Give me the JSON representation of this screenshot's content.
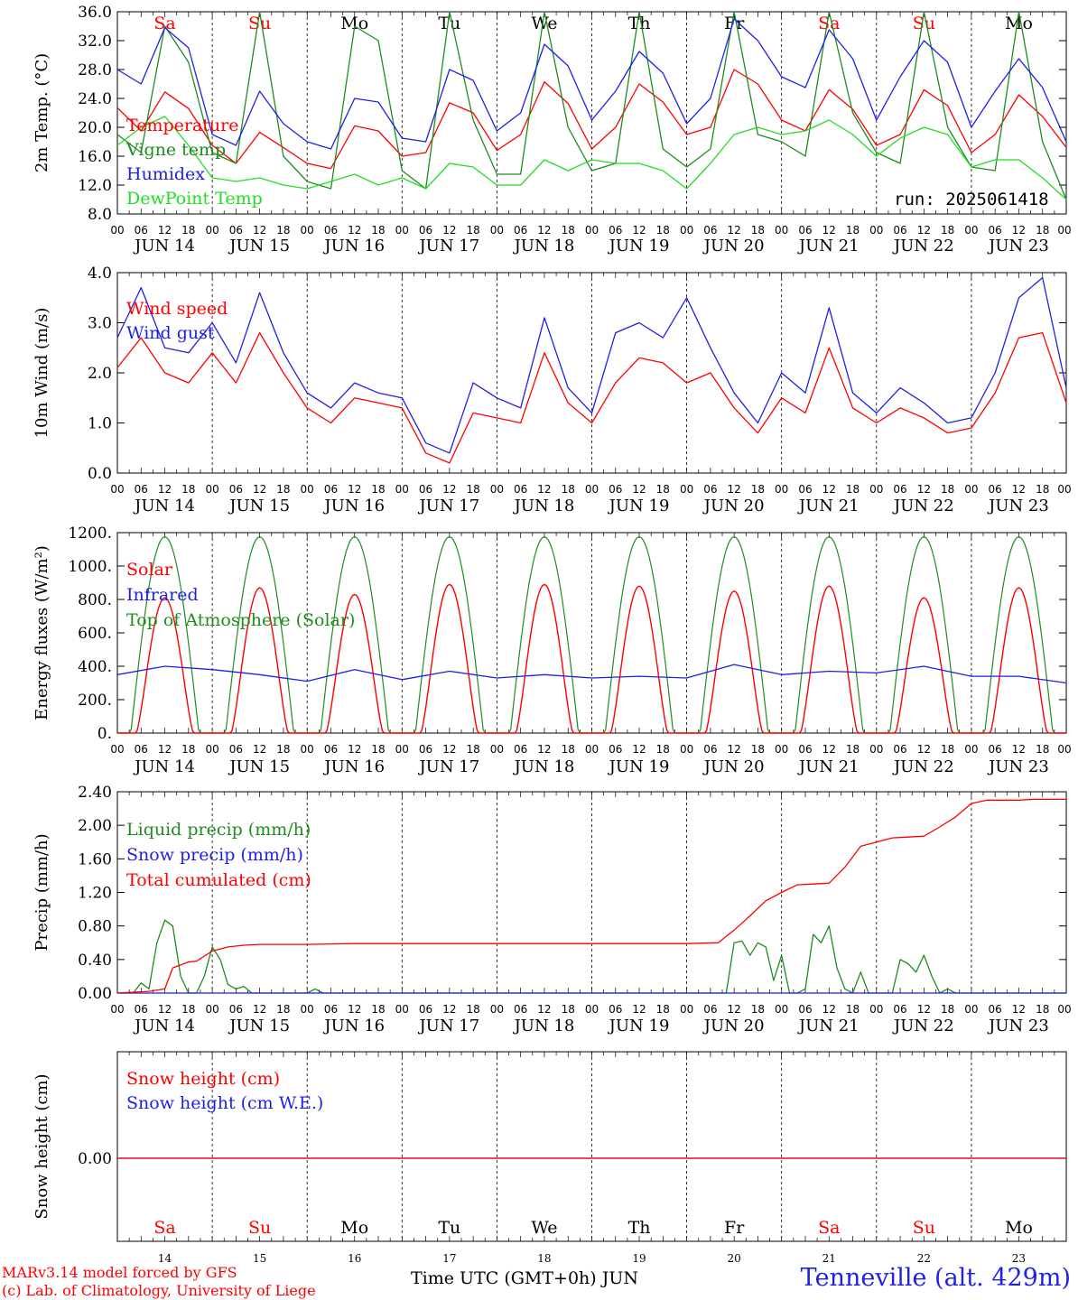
{
  "run_label": "run: 2025061418",
  "footer": {
    "model": "MARv3.14 model forced by GFS",
    "lab": "(c) Lab. of Climatology, University of Liege",
    "time_axis": "Time UTC (GMT+0h) JUN",
    "station": "Tenneville (alt. 429m)"
  },
  "days": {
    "weekday_labels": [
      "Sa",
      "Su",
      "Mo",
      "Tu",
      "We",
      "Th",
      "Fr",
      "Sa",
      "Su",
      "Mo"
    ],
    "weekend_color": "#ff0000",
    "date_labels": [
      "JUN 14",
      "JUN 15",
      "JUN 16",
      "JUN 17",
      "JUN 18",
      "JUN 19",
      "JUN 20",
      "JUN 21",
      "JUN 22",
      "JUN 23"
    ],
    "day_numbers": [
      "14",
      "15",
      "16",
      "17",
      "18",
      "19",
      "20",
      "21",
      "22",
      "23"
    ],
    "hour_ticks": [
      "00",
      "06",
      "12",
      "18"
    ],
    "final_tick": "00"
  },
  "colors": {
    "red": "#ff0000",
    "blue": "#1f1fe6",
    "green": "#1e8c1e",
    "lightgreen": "#22dd22"
  },
  "chart_data": [
    {
      "type": "line",
      "ylabel": "2m Temp. (°C)",
      "ylim": [
        8,
        36
      ],
      "yticks": [
        "8.0",
        "12.0",
        "16.0",
        "20.0",
        "24.0",
        "28.0",
        "32.0",
        "36.0"
      ],
      "x_unit": "hours since JUN 14 00 UTC",
      "series": [
        {
          "name": "Temperature",
          "color": "#ff0000",
          "x": [
            0,
            6,
            12,
            18,
            24,
            30,
            36,
            42,
            48,
            54,
            60,
            66,
            72,
            78,
            84,
            90,
            96,
            102,
            108,
            114,
            120,
            126,
            132,
            138,
            144,
            150,
            156,
            162,
            168,
            174,
            180,
            186,
            192,
            198,
            204,
            210,
            216,
            222,
            228,
            234,
            240
          ],
          "y": [
            22.7,
            19.5,
            24.9,
            22.6,
            17.5,
            15.0,
            19.3,
            17.2,
            15.0,
            14.3,
            20.2,
            19.5,
            16.0,
            16.5,
            23.4,
            22.0,
            16.8,
            19.0,
            26.3,
            23.3,
            17.0,
            20.0,
            26.0,
            23.5,
            19.0,
            20.0,
            28.0,
            26.0,
            21.0,
            19.5,
            25.2,
            22.5,
            17.5,
            19.0,
            25.2,
            23.0,
            16.5,
            19.0,
            24.5,
            21.5,
            17.2
          ]
        },
        {
          "name": "Vigne temp",
          "color": "#1e8c1e",
          "x": [
            0,
            6,
            12,
            18,
            24,
            30,
            36,
            42,
            48,
            54,
            60,
            66,
            72,
            78,
            84,
            90,
            96,
            102,
            108,
            114,
            120,
            126,
            132,
            138,
            144,
            150,
            156,
            162,
            168,
            174,
            180,
            186,
            192,
            198,
            204,
            210,
            216,
            222,
            228,
            234,
            240
          ],
          "y": [
            19.0,
            16.5,
            34.0,
            29.0,
            16.5,
            15.0,
            36.0,
            16.0,
            12.5,
            11.5,
            34.0,
            32.0,
            14.0,
            11.5,
            36.0,
            21.0,
            13.5,
            13.5,
            36.0,
            20.0,
            14.0,
            15.0,
            36.0,
            17.0,
            14.5,
            17.0,
            36.0,
            19.0,
            18.0,
            16.0,
            36.0,
            22.0,
            16.5,
            15.0,
            36.0,
            20.0,
            14.5,
            14.0,
            36.0,
            18.0,
            10.0
          ]
        },
        {
          "name": "Humidex",
          "color": "#1f1fe6",
          "x": [
            0,
            6,
            12,
            18,
            24,
            30,
            36,
            42,
            48,
            54,
            60,
            66,
            72,
            78,
            84,
            90,
            96,
            102,
            108,
            114,
            120,
            126,
            132,
            138,
            144,
            150,
            156,
            162,
            168,
            174,
            180,
            186,
            192,
            198,
            204,
            210,
            216,
            222,
            228,
            234,
            240
          ],
          "y": [
            28.0,
            26.0,
            33.8,
            31.0,
            19.0,
            17.5,
            25.0,
            20.5,
            18.0,
            17.0,
            24.0,
            23.5,
            18.5,
            18.0,
            28.0,
            26.5,
            19.5,
            22.0,
            31.5,
            28.5,
            21.0,
            25.0,
            30.5,
            27.5,
            20.5,
            24.0,
            35.0,
            32.0,
            27.0,
            25.5,
            33.5,
            29.5,
            21.0,
            27.0,
            32.0,
            29.0,
            20.0,
            25.0,
            29.5,
            25.5,
            18.0
          ]
        },
        {
          "name": "DewPoint Temp",
          "color": "#22dd22",
          "x": [
            0,
            6,
            12,
            18,
            24,
            30,
            36,
            42,
            48,
            54,
            60,
            66,
            72,
            78,
            84,
            90,
            96,
            102,
            108,
            114,
            120,
            126,
            132,
            138,
            144,
            150,
            156,
            162,
            168,
            174,
            180,
            186,
            192,
            198,
            204,
            210,
            216,
            222,
            228,
            234,
            240
          ],
          "y": [
            17.5,
            20.0,
            21.5,
            17.5,
            13.0,
            12.5,
            13.0,
            12.0,
            11.5,
            12.5,
            13.5,
            12.0,
            13.0,
            11.5,
            15.0,
            14.5,
            12.0,
            12.0,
            15.5,
            14.0,
            15.5,
            15.0,
            15.0,
            14.0,
            11.5,
            15.0,
            19.0,
            20.0,
            19.0,
            19.5,
            21.0,
            19.0,
            16.0,
            18.5,
            20.0,
            19.0,
            14.5,
            15.5,
            15.5,
            13.0,
            10.0
          ]
        }
      ]
    },
    {
      "type": "line",
      "ylabel": "10m Wind (m/s)",
      "ylim": [
        0,
        4
      ],
      "yticks": [
        "0.0",
        "1.0",
        "2.0",
        "3.0",
        "4.0"
      ],
      "x_unit": "hours since JUN 14 00 UTC",
      "series": [
        {
          "name": "Wind speed",
          "color": "#ff0000",
          "x": [
            0,
            6,
            12,
            18,
            24,
            30,
            36,
            42,
            48,
            54,
            60,
            66,
            72,
            78,
            84,
            90,
            96,
            102,
            108,
            114,
            120,
            126,
            132,
            138,
            144,
            150,
            156,
            162,
            168,
            174,
            180,
            186,
            192,
            198,
            204,
            210,
            216,
            222,
            228,
            234,
            240
          ],
          "y": [
            2.1,
            2.7,
            2.0,
            1.8,
            2.4,
            1.8,
            2.8,
            2.0,
            1.3,
            1.0,
            1.5,
            1.4,
            1.3,
            0.4,
            0.2,
            1.2,
            1.1,
            1.0,
            2.4,
            1.4,
            1.0,
            1.8,
            2.3,
            2.2,
            1.8,
            2.0,
            1.3,
            0.8,
            1.5,
            1.2,
            2.5,
            1.3,
            1.0,
            1.3,
            1.1,
            0.8,
            0.9,
            1.6,
            2.7,
            2.8,
            1.4
          ]
        },
        {
          "name": "Wind gust",
          "color": "#1f1fe6",
          "x": [
            0,
            6,
            12,
            18,
            24,
            30,
            36,
            42,
            48,
            54,
            60,
            66,
            72,
            78,
            84,
            90,
            96,
            102,
            108,
            114,
            120,
            126,
            132,
            138,
            144,
            150,
            156,
            162,
            168,
            174,
            180,
            186,
            192,
            198,
            204,
            210,
            216,
            222,
            228,
            234,
            240
          ],
          "y": [
            2.7,
            3.7,
            2.5,
            2.4,
            3.0,
            2.2,
            3.6,
            2.4,
            1.6,
            1.3,
            1.8,
            1.6,
            1.5,
            0.6,
            0.4,
            1.8,
            1.5,
            1.3,
            3.1,
            1.7,
            1.2,
            2.8,
            3.0,
            2.7,
            3.5,
            2.5,
            1.6,
            1.0,
            2.0,
            1.6,
            3.3,
            1.6,
            1.2,
            1.7,
            1.4,
            1.0,
            1.1,
            2.0,
            3.5,
            3.9,
            1.7
          ]
        }
      ]
    },
    {
      "type": "line",
      "ylabel": "Energy fluxes (W/m²)",
      "ylim": [
        0,
        1200
      ],
      "yticks": [
        "0.",
        "200.",
        "400.",
        "600.",
        "800.",
        "1000.",
        "1200."
      ],
      "x_unit": "hours since JUN 14 00 UTC",
      "series": [
        {
          "name": "Solar",
          "color": "#ff0000",
          "day_peaks": [
            810,
            870,
            830,
            890,
            890,
            880,
            850,
            880,
            810,
            870
          ]
        },
        {
          "name": "Infrared",
          "color": "#1f1fe6",
          "x": [
            0,
            12,
            24,
            36,
            48,
            60,
            72,
            84,
            96,
            108,
            120,
            132,
            144,
            156,
            168,
            180,
            192,
            204,
            216,
            228,
            240
          ],
          "y": [
            350,
            400,
            380,
            350,
            310,
            380,
            320,
            370,
            330,
            350,
            330,
            340,
            330,
            410,
            350,
            370,
            360,
            400,
            340,
            340,
            300
          ]
        },
        {
          "name": "Top of Atmosphere (Solar)",
          "color": "#1e8c1e",
          "day_peak": 1175
        }
      ]
    },
    {
      "type": "line",
      "ylabel": "Precip (mm/h)",
      "ylim": [
        0,
        2.4
      ],
      "yticks": [
        "0.00",
        "0.40",
        "0.80",
        "1.20",
        "1.60",
        "2.00",
        "2.40"
      ],
      "x_unit": "hours since JUN 14 00 UTC",
      "series": [
        {
          "name": "Liquid precip (mm/h)",
          "color": "#1e8c1e",
          "x": [
            0,
            4,
            6,
            8,
            10,
            12,
            14,
            16,
            18,
            20,
            22,
            24,
            26,
            28,
            30,
            32,
            34,
            48,
            50,
            52,
            154,
            156,
            158,
            160,
            162,
            164,
            166,
            168,
            170,
            172,
            174,
            176,
            178,
            180,
            182,
            184,
            186,
            188,
            190,
            192,
            194,
            196,
            198,
            200,
            202,
            204,
            206,
            208,
            210,
            212,
            214,
            240
          ],
          "y": [
            0,
            0,
            0.12,
            0.05,
            0.6,
            0.87,
            0.8,
            0.2,
            0,
            0,
            0.2,
            0.55,
            0.4,
            0.1,
            0.05,
            0.08,
            0,
            0,
            0.05,
            0,
            0,
            0.6,
            0.62,
            0.45,
            0.6,
            0.55,
            0.15,
            0.45,
            0,
            0,
            0.05,
            0.7,
            0.6,
            0.8,
            0.3,
            0.05,
            0,
            0.25,
            0,
            0,
            0,
            0,
            0.4,
            0.35,
            0.25,
            0.45,
            0.2,
            0,
            0.05,
            0,
            0,
            0
          ]
        },
        {
          "name": "Snow precip (mm/h)",
          "color": "#1f1fe6",
          "x": [
            0,
            240
          ],
          "y": [
            0,
            0
          ]
        },
        {
          "name": "Total cumulated (cm)",
          "color": "#ff0000",
          "x": [
            0,
            8,
            12,
            14,
            18,
            20,
            24,
            28,
            32,
            36,
            40,
            48,
            60,
            72,
            96,
            120,
            144,
            152,
            156,
            160,
            164,
            168,
            172,
            176,
            180,
            184,
            188,
            192,
            196,
            200,
            204,
            208,
            212,
            216,
            220,
            224,
            228,
            232,
            236,
            240
          ],
          "y": [
            0,
            0.02,
            0.05,
            0.3,
            0.37,
            0.38,
            0.5,
            0.55,
            0.57,
            0.58,
            0.58,
            0.58,
            0.59,
            0.59,
            0.59,
            0.59,
            0.59,
            0.6,
            0.75,
            0.92,
            1.1,
            1.2,
            1.29,
            1.3,
            1.31,
            1.5,
            1.75,
            1.8,
            1.85,
            1.86,
            1.87,
            1.98,
            2.1,
            2.26,
            2.3,
            2.3,
            2.3,
            2.31,
            2.31,
            2.31
          ]
        }
      ]
    },
    {
      "type": "line",
      "ylabel": "Snow height (cm)",
      "yticks": [
        "0.00"
      ],
      "x_unit": "hours since JUN 14 00 UTC",
      "series": [
        {
          "name": "Snow height (cm)",
          "color": "#ff0000",
          "x": [
            0,
            240
          ],
          "y": [
            0,
            0
          ]
        },
        {
          "name": "Snow height (cm W.E.)",
          "color": "#1f1fe6",
          "x": [
            0,
            240
          ],
          "y": [
            0,
            0
          ]
        }
      ]
    }
  ]
}
